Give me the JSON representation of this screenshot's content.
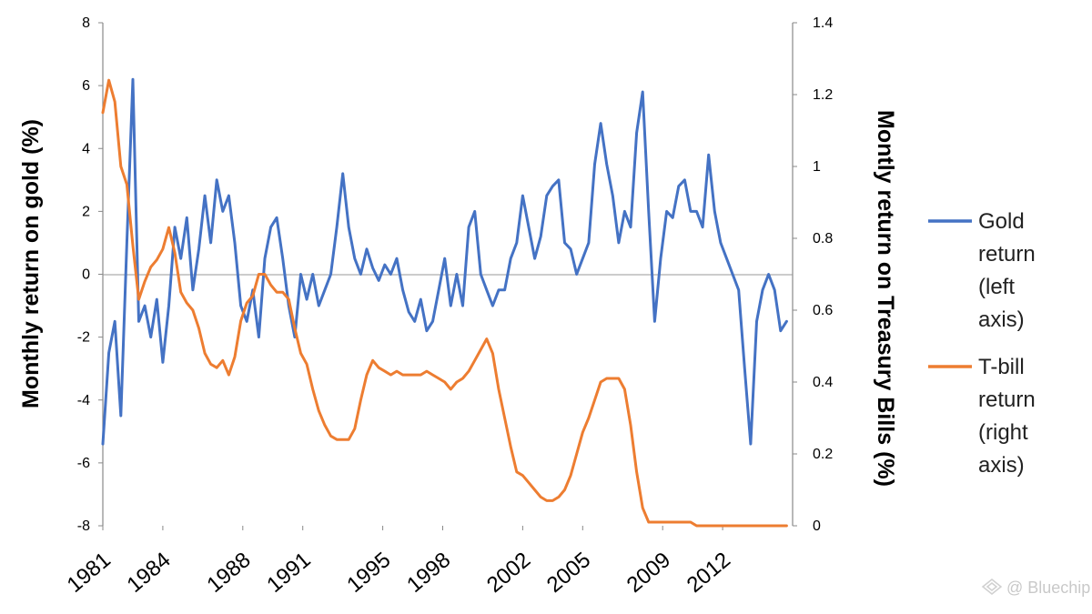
{
  "chart_data": {
    "type": "line",
    "title": "",
    "ylabel_left": "Monthly return on gold (%)",
    "ylabel_right": "Montly return on Treasury Bills (%)",
    "xlabel": "",
    "ylim_left": [
      -8,
      8
    ],
    "ylim_right": [
      0,
      1.4
    ],
    "yticks_left": [
      "8",
      "6",
      "4",
      "2",
      "0",
      "-2",
      "-4",
      "-6",
      "-8"
    ],
    "yticks_right": [
      "1.4",
      "1.2",
      "1",
      "0.8",
      "0.6",
      "0.4",
      "0.2",
      "0"
    ],
    "xlim": [
      1981,
      2015.5
    ],
    "xticks": [
      "1981",
      "1984",
      "1988",
      "1991",
      "1995",
      "1998",
      "2002",
      "2005",
      "2009",
      "2012"
    ],
    "grid": false,
    "legend_position": "right",
    "series": [
      {
        "name": "Gold return (left axis)",
        "axis": "left",
        "color": "#4472C4",
        "x": [
          1981.0,
          1981.3,
          1981.6,
          1981.9,
          1982.2,
          1982.5,
          1982.8,
          1983.1,
          1983.4,
          1983.7,
          1984.0,
          1984.3,
          1984.6,
          1984.9,
          1985.2,
          1985.5,
          1985.8,
          1986.1,
          1986.4,
          1986.7,
          1987.0,
          1987.3,
          1987.6,
          1987.9,
          1988.2,
          1988.5,
          1988.8,
          1989.1,
          1989.4,
          1989.7,
          1990.0,
          1990.3,
          1990.6,
          1990.9,
          1991.2,
          1991.5,
          1991.8,
          1992.1,
          1992.4,
          1992.7,
          1993.0,
          1993.3,
          1993.6,
          1993.9,
          1994.2,
          1994.5,
          1994.8,
          1995.1,
          1995.4,
          1995.7,
          1996.0,
          1996.3,
          1996.6,
          1996.9,
          1997.2,
          1997.5,
          1997.8,
          1998.1,
          1998.4,
          1998.7,
          1999.0,
          1999.3,
          1999.6,
          1999.9,
          2000.2,
          2000.5,
          2000.8,
          2001.1,
          2001.4,
          2001.7,
          2002.0,
          2002.3,
          2002.6,
          2002.9,
          2003.2,
          2003.5,
          2003.8,
          2004.1,
          2004.4,
          2004.7,
          2005.0,
          2005.3,
          2005.6,
          2005.9,
          2006.2,
          2006.5,
          2006.8,
          2007.1,
          2007.4,
          2007.7,
          2008.0,
          2008.3,
          2008.6,
          2008.9,
          2009.2,
          2009.5,
          2009.8,
          2010.1,
          2010.4,
          2010.7,
          2011.0,
          2011.3,
          2011.6,
          2011.9,
          2012.2,
          2012.5,
          2012.8,
          2013.1,
          2013.4,
          2013.7,
          2014.0,
          2014.3,
          2014.6,
          2014.9,
          2015.2
        ],
        "values": [
          -5.4,
          -2.5,
          -1.5,
          -4.5,
          1.0,
          6.2,
          -1.5,
          -1.0,
          -2.0,
          -0.8,
          -2.8,
          -1.0,
          1.5,
          0.5,
          1.8,
          -0.5,
          0.8,
          2.5,
          1.0,
          3.0,
          2.0,
          2.5,
          1.0,
          -1.0,
          -1.5,
          -0.5,
          -2.0,
          0.5,
          1.5,
          1.8,
          0.5,
          -1.0,
          -2.0,
          0.0,
          -0.8,
          0.0,
          -1.0,
          -0.5,
          0.0,
          1.5,
          3.2,
          1.5,
          0.5,
          0.0,
          0.8,
          0.2,
          -0.2,
          0.3,
          0.0,
          0.5,
          -0.5,
          -1.2,
          -1.5,
          -0.8,
          -1.8,
          -1.5,
          -0.5,
          0.5,
          -1.0,
          0.0,
          -1.0,
          1.5,
          2.0,
          0.0,
          -0.5,
          -1.0,
          -0.5,
          -0.5,
          0.5,
          1.0,
          2.5,
          1.5,
          0.5,
          1.2,
          2.5,
          2.8,
          3.0,
          1.0,
          0.8,
          0.0,
          0.5,
          1.0,
          3.5,
          4.8,
          3.5,
          2.5,
          1.0,
          2.0,
          1.5,
          4.5,
          5.8,
          2.0,
          -1.5,
          0.5,
          2.0,
          1.8,
          2.8,
          3.0,
          2.0,
          2.0,
          1.5,
          3.8,
          2.0,
          1.0,
          0.5,
          0.0,
          -0.5,
          -3.0,
          -5.4,
          -1.5,
          -0.5,
          0.0,
          -0.5,
          -1.8,
          -1.5
        ]
      },
      {
        "name": "T-bill return (right axis)",
        "axis": "right",
        "color": "#ED7D31",
        "x": [
          1981.0,
          1981.3,
          1981.6,
          1981.9,
          1982.2,
          1982.5,
          1982.8,
          1983.1,
          1983.4,
          1983.7,
          1984.0,
          1984.3,
          1984.6,
          1984.9,
          1985.2,
          1985.5,
          1985.8,
          1986.1,
          1986.4,
          1986.7,
          1987.0,
          1987.3,
          1987.6,
          1987.9,
          1988.2,
          1988.5,
          1988.8,
          1989.1,
          1989.4,
          1989.7,
          1990.0,
          1990.3,
          1990.6,
          1990.9,
          1991.2,
          1991.5,
          1991.8,
          1992.1,
          1992.4,
          1992.7,
          1993.0,
          1993.3,
          1993.6,
          1993.9,
          1994.2,
          1994.5,
          1994.8,
          1995.1,
          1995.4,
          1995.7,
          1996.0,
          1996.3,
          1996.6,
          1996.9,
          1997.2,
          1997.5,
          1997.8,
          1998.1,
          1998.4,
          1998.7,
          1999.0,
          1999.3,
          1999.6,
          1999.9,
          2000.2,
          2000.5,
          2000.8,
          2001.1,
          2001.4,
          2001.7,
          2002.0,
          2002.3,
          2002.6,
          2002.9,
          2003.2,
          2003.5,
          2003.8,
          2004.1,
          2004.4,
          2004.7,
          2005.0,
          2005.3,
          2005.6,
          2005.9,
          2006.2,
          2006.5,
          2006.8,
          2007.1,
          2007.4,
          2007.7,
          2008.0,
          2008.3,
          2008.6,
          2008.9,
          2009.2,
          2009.5,
          2009.8,
          2010.1,
          2010.4,
          2010.7,
          2011.0,
          2011.3,
          2011.6,
          2011.9,
          2012.2,
          2012.5,
          2012.8,
          2013.1,
          2013.4,
          2013.7,
          2014.0,
          2014.3,
          2014.6,
          2014.9,
          2015.2
        ],
        "values": [
          1.15,
          1.24,
          1.18,
          1.0,
          0.95,
          0.78,
          0.63,
          0.68,
          0.72,
          0.74,
          0.77,
          0.83,
          0.76,
          0.65,
          0.62,
          0.6,
          0.55,
          0.48,
          0.45,
          0.44,
          0.46,
          0.42,
          0.47,
          0.57,
          0.62,
          0.64,
          0.7,
          0.7,
          0.67,
          0.65,
          0.65,
          0.63,
          0.55,
          0.48,
          0.45,
          0.38,
          0.32,
          0.28,
          0.25,
          0.24,
          0.24,
          0.24,
          0.27,
          0.35,
          0.42,
          0.46,
          0.44,
          0.43,
          0.42,
          0.43,
          0.42,
          0.42,
          0.42,
          0.42,
          0.43,
          0.42,
          0.41,
          0.4,
          0.38,
          0.4,
          0.41,
          0.43,
          0.46,
          0.49,
          0.52,
          0.48,
          0.38,
          0.3,
          0.22,
          0.15,
          0.14,
          0.12,
          0.1,
          0.08,
          0.07,
          0.07,
          0.08,
          0.1,
          0.14,
          0.2,
          0.26,
          0.3,
          0.35,
          0.4,
          0.41,
          0.41,
          0.41,
          0.38,
          0.28,
          0.15,
          0.05,
          0.01,
          0.01,
          0.01,
          0.01,
          0.01,
          0.01,
          0.01,
          0.01,
          0.0,
          0.0,
          0.0,
          0.0,
          0.0,
          0.0,
          0.0,
          0.0,
          0.0,
          0.0,
          0.0,
          0.0,
          0.0,
          0.0,
          0.0,
          0.0
        ]
      }
    ]
  },
  "legend": {
    "gold_lines": [
      "Gold",
      "return",
      "(left",
      "axis)"
    ],
    "tbill_lines": [
      "T-bill",
      "return",
      "(right",
      "axis)"
    ]
  },
  "watermark": "@ Bluechip"
}
